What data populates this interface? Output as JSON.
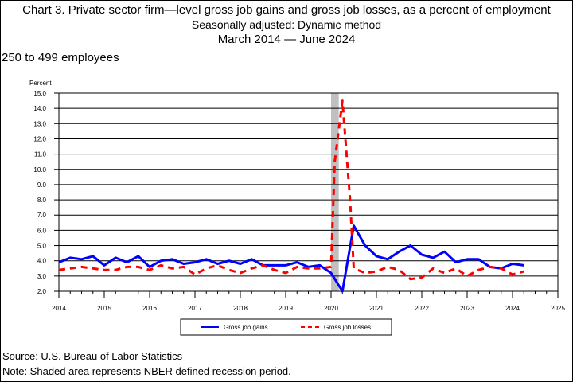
{
  "title": {
    "line1": "Chart 3. Private sector firm—level gross job gains and gross job losses, as a percent of employment",
    "line2": "Seasonally adjusted: Dynamic method",
    "line3": "March 2014  — June 2024"
  },
  "subtitle": "250 to 499 employees",
  "footer": {
    "source": "Source: U.S. Bureau of Labor Statistics",
    "note": "Note: Shaded area represents NBER defined recession period."
  },
  "colors": {
    "gains": "#0000ff",
    "losses": "#ff0000",
    "recession": "#c0c0c0"
  },
  "chart_data": {
    "type": "line",
    "ylabel": "Percent",
    "xlabel": "",
    "ylim": [
      2.0,
      15.0
    ],
    "xlim": [
      2014,
      2025
    ],
    "yticks": [
      "2.0",
      "3.0",
      "4.0",
      "5.0",
      "6.0",
      "7.0",
      "8.0",
      "9.0",
      "10.0",
      "11.0",
      "12.0",
      "13.0",
      "14.0",
      "15.0"
    ],
    "xticks": [
      "2014",
      "2015",
      "2016",
      "2017",
      "2018",
      "2019",
      "2020",
      "2021",
      "2022",
      "2023",
      "2024",
      "2025"
    ],
    "grid": true,
    "legend_position": "bottom",
    "recession": [
      2020.0,
      2020.17
    ],
    "series": [
      {
        "name": "Gross job gains",
        "style": "solid",
        "x": [
          2014.0,
          2014.25,
          2014.5,
          2014.75,
          2015.0,
          2015.25,
          2015.5,
          2015.75,
          2016.0,
          2016.25,
          2016.5,
          2016.75,
          2017.0,
          2017.25,
          2017.5,
          2017.75,
          2018.0,
          2018.25,
          2018.5,
          2018.75,
          2019.0,
          2019.25,
          2019.5,
          2019.75,
          2020.0,
          2020.25,
          2020.5,
          2020.75,
          2021.0,
          2021.25,
          2021.5,
          2021.75,
          2022.0,
          2022.25,
          2022.5,
          2022.75,
          2023.0,
          2023.25,
          2023.5,
          2023.75,
          2024.0,
          2024.25
        ],
        "values": [
          3.9,
          4.2,
          4.1,
          4.3,
          3.7,
          4.2,
          3.9,
          4.3,
          3.6,
          4.0,
          4.1,
          3.8,
          3.9,
          4.1,
          3.8,
          4.0,
          3.8,
          4.1,
          3.7,
          3.7,
          3.7,
          3.9,
          3.6,
          3.7,
          3.2,
          2.0,
          6.3,
          5.0,
          4.3,
          4.1,
          4.6,
          5.0,
          4.4,
          4.2,
          4.6,
          3.9,
          4.1,
          4.1,
          3.6,
          3.5,
          3.8,
          3.7
        ]
      },
      {
        "name": "Gross job losses",
        "style": "dashed",
        "x": [
          2014.0,
          2014.25,
          2014.5,
          2014.75,
          2015.0,
          2015.25,
          2015.5,
          2015.75,
          2016.0,
          2016.25,
          2016.5,
          2016.75,
          2017.0,
          2017.25,
          2017.5,
          2017.75,
          2018.0,
          2018.25,
          2018.5,
          2018.75,
          2019.0,
          2019.25,
          2019.5,
          2019.75,
          2020.0,
          2020.08,
          2020.25,
          2020.42,
          2020.5,
          2020.75,
          2021.0,
          2021.25,
          2021.5,
          2021.75,
          2022.0,
          2022.25,
          2022.5,
          2022.75,
          2023.0,
          2023.25,
          2023.5,
          2023.75,
          2024.0,
          2024.25
        ],
        "values": [
          3.4,
          3.5,
          3.6,
          3.5,
          3.4,
          3.4,
          3.6,
          3.6,
          3.4,
          3.7,
          3.5,
          3.6,
          3.1,
          3.5,
          3.7,
          3.4,
          3.2,
          3.5,
          3.7,
          3.4,
          3.2,
          3.6,
          3.5,
          3.5,
          3.6,
          10.5,
          14.5,
          8.0,
          3.5,
          3.2,
          3.3,
          3.6,
          3.4,
          2.8,
          2.9,
          3.5,
          3.2,
          3.5,
          3.0,
          3.4,
          3.6,
          3.5,
          3.1,
          3.3
        ]
      }
    ]
  }
}
